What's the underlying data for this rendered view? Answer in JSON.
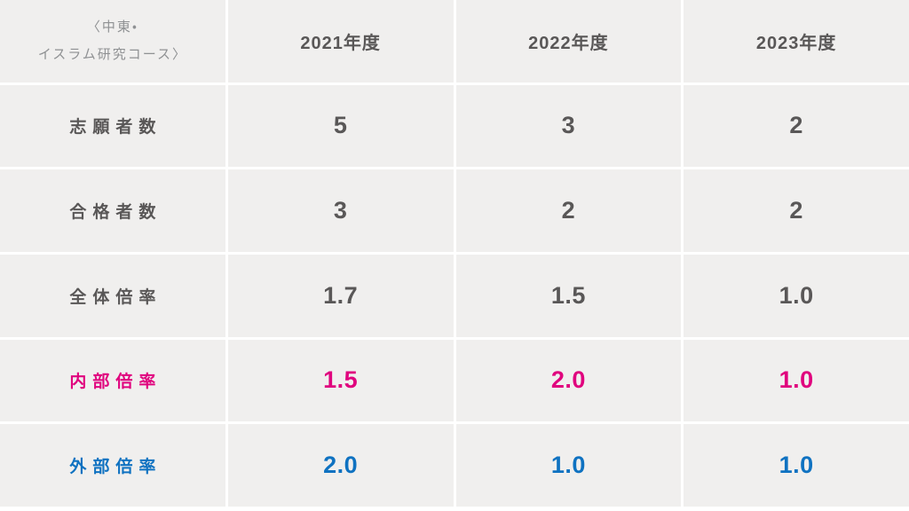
{
  "colors": {
    "pink": "#e0037e",
    "blue": "#0f72c1",
    "gray": "#595757",
    "muted": "#8f9193",
    "cell_bg": "#f0efee",
    "separator": "#ffffff"
  },
  "chart_data": {
    "type": "table",
    "title": "〈中東・イスラム研究コース〉",
    "corner": {
      "line1": "〈中東・",
      "line2": "イスラム研究コース〉"
    },
    "columns": [
      "2021年度",
      "2022年度",
      "2023年度"
    ],
    "rows": [
      {
        "label": "志願者数",
        "color": "gray",
        "values": [
          "5",
          "3",
          "2"
        ]
      },
      {
        "label": "合格者数",
        "color": "gray",
        "values": [
          "3",
          "2",
          "2"
        ]
      },
      {
        "label": "全体倍率",
        "color": "gray",
        "values": [
          "1.7",
          "1.5",
          "1.0"
        ]
      },
      {
        "label": "内部倍率",
        "color": "pink",
        "values": [
          "1.5",
          "2.0",
          "1.0"
        ]
      },
      {
        "label": "外部倍率",
        "color": "blue",
        "values": [
          "2.0",
          "1.0",
          "1.0"
        ]
      }
    ]
  }
}
